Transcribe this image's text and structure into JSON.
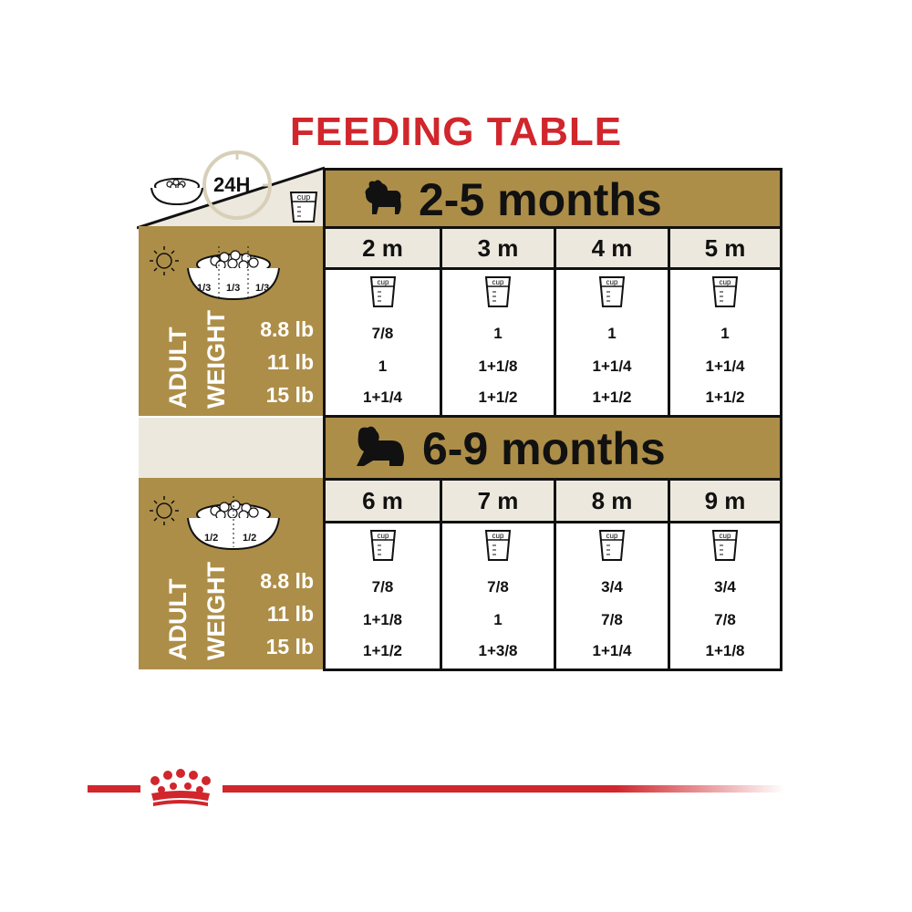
{
  "title": "FEEDING TABLE",
  "period_label": "24H",
  "cup_label": "cup",
  "icons": {
    "bowl": "food-bowl-icon",
    "clock": "clock-icon",
    "sun": "sun-icon",
    "moon": "moon-icon",
    "dog": "dog-silhouette-icon",
    "crown": "royal-crown-logo"
  },
  "colors": {
    "title": "#d0262c",
    "gold": "#ad8e48",
    "cream": "#ede8dd",
    "brand_red": "#d0262c"
  },
  "side_labels": {
    "line1": "ADULT",
    "line2": "WEIGHT"
  },
  "weights": [
    "8.8 lb",
    "11 lb",
    "15 lb"
  ],
  "sections": [
    {
      "label": "2-5 months",
      "meal_fractions": [
        "1/3",
        "1/3",
        "1/3"
      ],
      "months": [
        "2 m",
        "3 m",
        "4 m",
        "5 m"
      ],
      "rows": [
        [
          "7/8",
          "1",
          "1",
          "1"
        ],
        [
          "1",
          "1+1/8",
          "1+1/4",
          "1+1/4"
        ],
        [
          "1+1/4",
          "1+1/2",
          "1+1/2",
          "1+1/2"
        ]
      ]
    },
    {
      "label": "6-9 months",
      "meal_fractions": [
        "1/2",
        "1/2"
      ],
      "months": [
        "6 m",
        "7 m",
        "8 m",
        "9 m"
      ],
      "rows": [
        [
          "7/8",
          "7/8",
          "3/4",
          "3/4"
        ],
        [
          "1+1/8",
          "1",
          "7/8",
          "7/8"
        ],
        [
          "1+1/2",
          "1+3/8",
          "1+1/4",
          "1+1/8"
        ]
      ]
    }
  ]
}
